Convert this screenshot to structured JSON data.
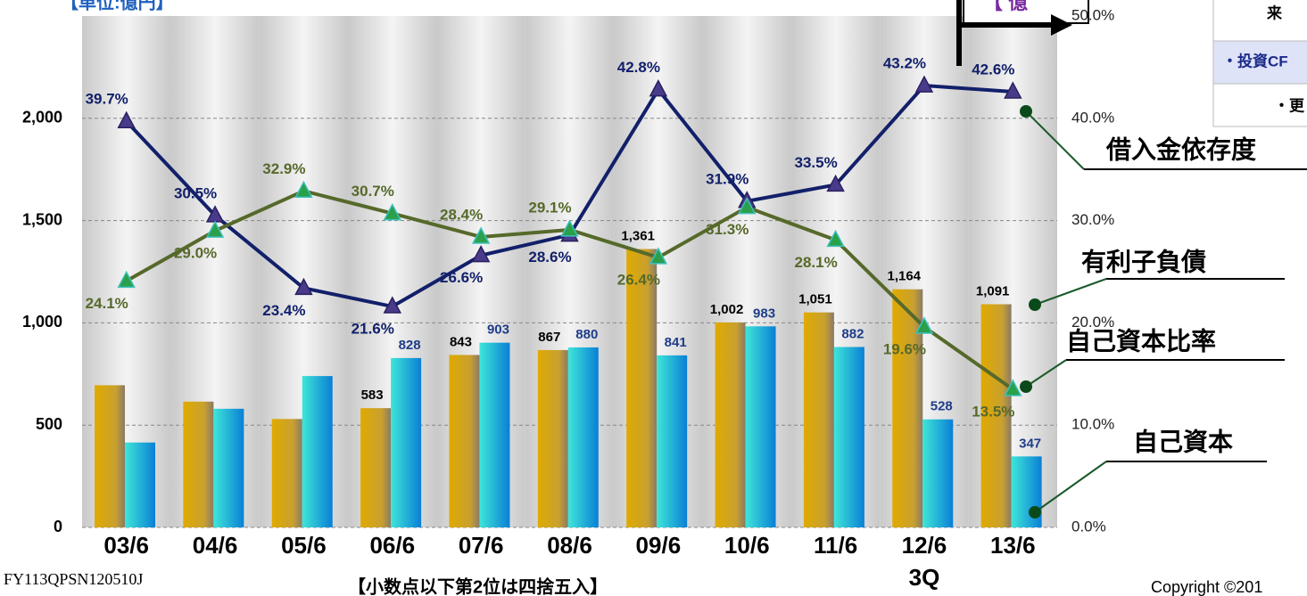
{
  "chart_data": {
    "type": "bar",
    "unit_label": "【単位:億円】",
    "categories": [
      "03/6",
      "04/6",
      "05/6",
      "06/6",
      "07/6",
      "08/6",
      "09/6",
      "10/6",
      "11/6",
      "12/6",
      "13/6"
    ],
    "category_note": "3Q",
    "series": [
      {
        "name": "有利子負債",
        "type": "bar",
        "color": "#d9a800",
        "values": [
          695,
          615,
          530,
          583,
          843,
          867,
          1361,
          1002,
          1051,
          1164,
          1091
        ],
        "value_labels": [
          null,
          null,
          null,
          "583",
          "843",
          "867",
          "1,361",
          "1,002",
          "1,051",
          "1,164",
          "1,091"
        ]
      },
      {
        "name": "自己資本",
        "type": "bar",
        "color": "#22c8e0",
        "values": [
          415,
          580,
          740,
          828,
          903,
          880,
          841,
          983,
          882,
          528,
          347
        ],
        "value_labels": [
          null,
          null,
          null,
          "828",
          "903",
          "880",
          "841",
          "983",
          "882",
          "528",
          "347"
        ]
      },
      {
        "name": "借入金依存度",
        "type": "line",
        "axis": "y2",
        "color": "#12206a",
        "values": [
          39.7,
          30.5,
          23.4,
          21.6,
          26.6,
          28.6,
          42.8,
          31.9,
          33.5,
          43.2,
          42.6
        ],
        "value_labels": [
          "39.7%",
          "30.5%",
          "23.4%",
          "21.6%",
          "26.6%",
          "28.6%",
          "42.8%",
          "31.9%",
          "33.5%",
          "43.2%",
          "42.6%"
        ]
      },
      {
        "name": "自己資本比率",
        "type": "line",
        "axis": "y2",
        "color": "#56692a",
        "values": [
          24.1,
          29.0,
          32.9,
          30.7,
          28.4,
          29.1,
          26.4,
          31.3,
          28.1,
          19.6,
          13.5
        ],
        "value_labels": [
          "24.1%",
          "29.0%",
          "32.9%",
          "30.7%",
          "28.4%",
          "29.1%",
          "26.4%",
          "31.3%",
          "28.1%",
          "19.6%",
          "13.5%"
        ]
      }
    ],
    "ylim": [
      0,
      2500
    ],
    "yticks": [
      0,
      500,
      {
        "value": 1000,
        "label": "1,000"
      },
      {
        "value": 1500,
        "label": "1,500"
      },
      {
        "value": 2000,
        "label": "2,000"
      }
    ],
    "y2lim": [
      0,
      50
    ],
    "y2ticks": [
      {
        "value": 0,
        "label": "0.0%"
      },
      {
        "value": 10,
        "label": "10.0%"
      },
      {
        "value": 20,
        "label": "20.0%"
      },
      {
        "value": 30,
        "label": "30.0%"
      },
      {
        "value": 40,
        "label": "40.0%"
      },
      {
        "value": 50,
        "label": "50.0%"
      }
    ],
    "grid": true,
    "footer_code": "FY113QPSN120510J",
    "footnote": "【小数点以下第2位は四捨五入】",
    "copyright": "Copyright ©201",
    "fragments": [
      "【 億",
      "来",
      "・投資CF",
      "・更"
    ]
  }
}
